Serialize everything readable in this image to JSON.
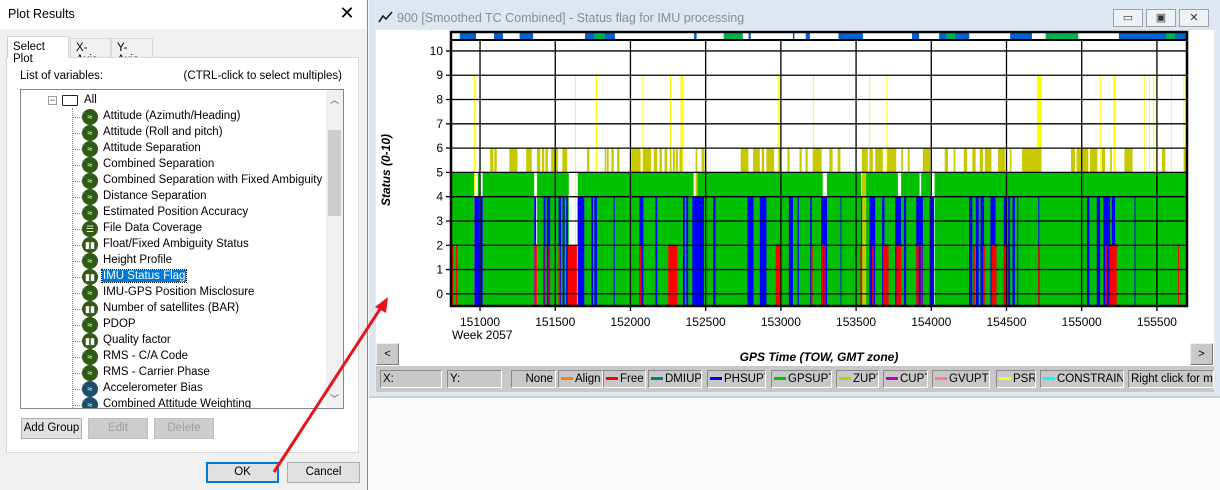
{
  "dialog": {
    "title": "Plot Results",
    "tabs": [
      {
        "label": "Select Plot",
        "active": true
      },
      {
        "label": "X-Axis"
      },
      {
        "label": "Y-Axis"
      }
    ],
    "list_label": "List of variables:",
    "list_hint": "(CTRL-click to select multiples)",
    "root": "All",
    "items": [
      {
        "label": "Attitude (Azimuth/Heading)",
        "icon": "wave-icon"
      },
      {
        "label": "Attitude (Roll and pitch)",
        "icon": "wave-icon"
      },
      {
        "label": "Attitude Separation",
        "icon": "wave-icon"
      },
      {
        "label": "Combined Separation",
        "icon": "wave-icon"
      },
      {
        "label": "Combined Separation with Fixed Ambiguity",
        "icon": "wave-icon"
      },
      {
        "label": "Distance Separation",
        "icon": "wave-icon"
      },
      {
        "label": "Estimated Position Accuracy",
        "icon": "wave-icon"
      },
      {
        "label": "File Data Coverage",
        "icon": "coverage-icon"
      },
      {
        "label": "Float/Fixed Ambiguity Status",
        "icon": "bar-chart-icon"
      },
      {
        "label": "Height Profile",
        "icon": "wave-icon"
      },
      {
        "label": "IMU Status Flag",
        "icon": "bar-chart-icon",
        "selected": true
      },
      {
        "label": "IMU-GPS Position Misclosure",
        "icon": "wave-icon"
      },
      {
        "label": "Number of satellites (BAR)",
        "icon": "bar-chart-icon"
      },
      {
        "label": "PDOP",
        "icon": "wave-icon"
      },
      {
        "label": "Quality factor",
        "icon": "bar-chart-icon"
      },
      {
        "label": "RMS - C/A Code",
        "icon": "wave-icon"
      },
      {
        "label": "RMS - Carrier Phase",
        "icon": "wave-icon"
      },
      {
        "label": "Accelerometer Bias",
        "icon": "wave-icon",
        "teal": true
      },
      {
        "label": "Combined Attitude Weighting",
        "icon": "wave-icon",
        "teal": true
      }
    ],
    "buttons": {
      "add_group": "Add Group",
      "edit": "Edit",
      "delete": "Delete",
      "ok": "OK",
      "cancel": "Cancel"
    }
  },
  "plot_window": {
    "title": "900 [Smoothed TC Combined] - Status flag for IMU processing",
    "scroll_left": "<",
    "scroll_right": ">",
    "status": {
      "x": "X:",
      "y": "Y:",
      "more": "Right click for mo"
    },
    "legend": [
      {
        "label": "None",
        "color": ""
      },
      {
        "label": "Align",
        "color": "#ff8000"
      },
      {
        "label": "Free",
        "color": "#ff0000"
      },
      {
        "label": "DMIUPT",
        "color": "#008080"
      },
      {
        "label": "PHSUPT",
        "color": "#0000ff"
      },
      {
        "label": "GPSUPT",
        "color": "#00c000"
      },
      {
        "label": "ZUPT",
        "color": "#c8c800"
      },
      {
        "label": "CUPT",
        "color": "#c000c0"
      },
      {
        "label": "GVUPT",
        "color": "#ff8080"
      },
      {
        "label": "PSR",
        "color": "#ffff00"
      },
      {
        "label": "CONSTRAINT",
        "color": "#00ffff"
      }
    ]
  },
  "chart_data": {
    "type": "bar",
    "xlabel": "GPS Time (TOW, GMT zone)",
    "xsublabel": "Week 2057",
    "ylabel": "Status (0-10)",
    "xlim": [
      150807,
      155700
    ],
    "ylim": [
      -0.5,
      10.45
    ],
    "xticks": [
      151000,
      151500,
      152000,
      152500,
      153000,
      153500,
      154000,
      154500,
      155000,
      155500
    ],
    "yticks": [
      0,
      1,
      2,
      3,
      4,
      5,
      6,
      7,
      8,
      9,
      10
    ],
    "grid": true,
    "status_colors": {
      "2": "#ff0000",
      "4": "#0000ff",
      "5": "#00c000",
      "6": "#c8c800",
      "9": "#ffff00"
    },
    "segments": {
      "5": [
        [
          150807,
          150960
        ],
        [
          150985,
          151000
        ],
        [
          151017,
          151360
        ],
        [
          151380,
          151590
        ],
        [
          151650,
          152420
        ],
        [
          152445,
          153266
        ],
        [
          153200,
          153278
        ],
        [
          153306,
          153533
        ],
        [
          153567,
          153778
        ],
        [
          153800,
          153922
        ],
        [
          153933,
          153994
        ],
        [
          154022,
          155700
        ]
      ],
      "6": [
        [
          151067,
          151089
        ],
        [
          151095,
          151111
        ],
        [
          151195,
          151249
        ],
        [
          151307,
          151344
        ],
        [
          151378,
          151400
        ],
        [
          151411,
          151427
        ],
        [
          151435,
          151451
        ],
        [
          151473,
          151518
        ],
        [
          151547,
          151580
        ],
        [
          151711,
          151727
        ],
        [
          151829,
          151840
        ],
        [
          151844,
          151855
        ],
        [
          151873,
          151889
        ],
        [
          151911,
          151927
        ],
        [
          152007,
          152067
        ],
        [
          152084,
          152138
        ],
        [
          152155,
          152178
        ],
        [
          152193,
          152209
        ],
        [
          152227,
          152244
        ],
        [
          152262,
          152273
        ],
        [
          152282,
          152295
        ],
        [
          152302,
          152315
        ],
        [
          152326,
          152344
        ],
        [
          152433,
          152444
        ],
        [
          152473,
          152493
        ],
        [
          152733,
          152784
        ],
        [
          152815,
          152860
        ],
        [
          152873,
          152889
        ],
        [
          152904,
          152955
        ],
        [
          152984,
          152999
        ],
        [
          153044,
          153058
        ],
        [
          153124,
          153138
        ],
        [
          153164,
          153178
        ],
        [
          153211,
          153271
        ],
        [
          153322,
          153344
        ],
        [
          153378,
          153396
        ],
        [
          153538,
          153578
        ],
        [
          153589,
          153611
        ],
        [
          153627,
          153678
        ],
        [
          153707,
          153767
        ],
        [
          153800,
          153811
        ],
        [
          153844,
          153856
        ],
        [
          153944,
          153993
        ],
        [
          154089,
          154111
        ],
        [
          154149,
          154160
        ],
        [
          154216,
          154238
        ],
        [
          154273,
          154295
        ],
        [
          154322,
          154344
        ],
        [
          154356,
          154400
        ],
        [
          154444,
          154489
        ],
        [
          154522,
          154533
        ],
        [
          154604,
          154733
        ],
        [
          154929,
          154955
        ],
        [
          154966,
          155044
        ],
        [
          155055,
          155104
        ],
        [
          155133,
          155155
        ],
        [
          155189,
          155200
        ],
        [
          155284,
          155338
        ],
        [
          155533,
          155556
        ],
        [
          155678,
          155700
        ]
      ],
      "9": [
        [
          150960,
          150965
        ],
        [
          151631,
          151636
        ],
        [
          151771,
          151777
        ],
        [
          152080,
          152085
        ],
        [
          152262,
          152271
        ],
        [
          152333,
          152351
        ],
        [
          152980,
          152985
        ],
        [
          153213,
          153218
        ],
        [
          153214,
          153219
        ],
        [
          153587,
          153592
        ],
        [
          153702,
          153707
        ],
        [
          154494,
          154499
        ],
        [
          154702,
          154733
        ],
        [
          155120,
          155125
        ],
        [
          155211,
          155227
        ],
        [
          155416,
          155421
        ],
        [
          155447,
          155452
        ],
        [
          155476,
          155481
        ],
        [
          155594,
          155599
        ],
        [
          155676,
          155681
        ]
      ],
      "4": [
        [
          150962,
          150993
        ],
        [
          151004,
          151018
        ],
        [
          151360,
          151373
        ],
        [
          151422,
          151435
        ],
        [
          151444,
          151466
        ],
        [
          151522,
          151538
        ],
        [
          151549,
          151562
        ],
        [
          151573,
          151584
        ],
        [
          151649,
          151693
        ],
        [
          151740,
          151751
        ],
        [
          151760,
          151778
        ],
        [
          151889,
          151895
        ],
        [
          152060,
          152086
        ],
        [
          152166,
          152178
        ],
        [
          152349,
          152362
        ],
        [
          152371,
          152384
        ],
        [
          152411,
          152489
        ],
        [
          152549,
          152566
        ],
        [
          152778,
          152818
        ],
        [
          152860,
          152904
        ],
        [
          153053,
          153080
        ],
        [
          153111,
          153120
        ],
        [
          153195,
          153206
        ],
        [
          153267,
          153307
        ],
        [
          153396,
          153400
        ],
        [
          153533,
          153540
        ],
        [
          153589,
          153627
        ],
        [
          153673,
          153689
        ],
        [
          153760,
          153800
        ],
        [
          153818,
          153833
        ],
        [
          153900,
          153944
        ],
        [
          153989,
          154018
        ],
        [
          154251,
          154273
        ],
        [
          154296,
          154315
        ],
        [
          154327,
          154351
        ],
        [
          154393,
          154427
        ],
        [
          154482,
          154496
        ],
        [
          154511,
          154524
        ],
        [
          154540,
          154556
        ],
        [
          154571,
          154578
        ],
        [
          154711,
          154718
        ],
        [
          155035,
          155051
        ],
        [
          155100,
          155122
        ],
        [
          155144,
          155189
        ],
        [
          155200,
          155222
        ],
        [
          155351,
          155356
        ]
      ],
      "2": [
        [
          150811,
          150822
        ],
        [
          150840,
          150849
        ],
        [
          150993,
          151000
        ],
        [
          151362,
          151378
        ],
        [
          151429,
          151435
        ],
        [
          151455,
          151466
        ],
        [
          151522,
          151533
        ],
        [
          151584,
          151644
        ],
        [
          152062,
          152073
        ],
        [
          152251,
          152311
        ],
        [
          152966,
          152999
        ],
        [
          153200,
          153211
        ],
        [
          153267,
          153282
        ],
        [
          153289,
          153298
        ],
        [
          153529,
          153538
        ],
        [
          153607,
          153618
        ],
        [
          153678,
          153716
        ],
        [
          153767,
          153800
        ],
        [
          153900,
          153916
        ],
        [
          153929,
          153940
        ],
        [
          154278,
          154289
        ],
        [
          154344,
          154356
        ],
        [
          154400,
          154433
        ],
        [
          154484,
          154511
        ],
        [
          154711,
          154722
        ],
        [
          155156,
          155167
        ],
        [
          155184,
          155233
        ],
        [
          155640,
          155644
        ]
      ]
    },
    "top_strip": {
      "blue": [
        [
          150865,
          150973
        ],
        [
          151093,
          151153
        ],
        [
          151263,
          151353
        ],
        [
          151698,
          151897
        ],
        [
          152423,
          152440
        ],
        [
          152785,
          152800
        ],
        [
          153080,
          153086
        ],
        [
          153165,
          153193
        ],
        [
          153383,
          153545
        ],
        [
          153872,
          153919
        ],
        [
          154052,
          154252
        ],
        [
          154524,
          154669
        ],
        [
          155247,
          155700
        ]
      ],
      "green": [
        [
          151760,
          151830
        ],
        [
          152620,
          152747
        ],
        [
          154100,
          154160
        ],
        [
          154760,
          154977
        ],
        [
          155560,
          155620
        ]
      ],
      "colors": {
        "blue": "#0062d0",
        "green": "#00b050"
      }
    }
  }
}
